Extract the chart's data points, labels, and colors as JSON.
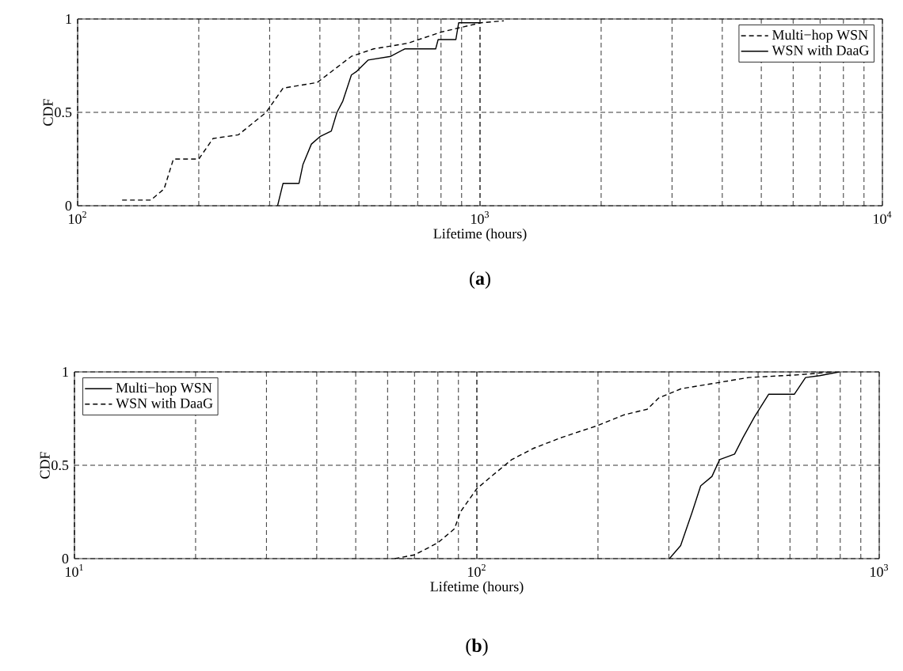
{
  "chart_data": [
    {
      "type": "line",
      "xlabel": "Lifetime (hours)",
      "ylabel": "CDF",
      "log": "x",
      "grid": true,
      "legend": "top right",
      "xlim": [
        100,
        10000
      ],
      "ylim": [
        0,
        1
      ],
      "xticks": [
        {
          "value": 100,
          "label": "10$^{2}$"
        },
        {
          "value": 1000,
          "label": "10$^{3}$"
        },
        {
          "value": 10000,
          "label": "10$^{4}$"
        }
      ],
      "yticks": [
        0,
        0.5,
        1
      ],
      "annotations": [
        "(**a**)"
      ],
      "series": [
        {
          "name": "Multi−hop WSN",
          "color": "#000000",
          "line_style": "dashed",
          "x": [
            129,
            152,
            164,
            173,
            200,
            217,
            251,
            294,
            324,
            394,
            479,
            544,
            661,
            801,
            1007,
            1146
          ],
          "values": [
            0.03,
            0.03,
            0.09,
            0.25,
            0.25,
            0.36,
            0.38,
            0.5,
            0.63,
            0.66,
            0.8,
            0.84,
            0.87,
            0.93,
            0.98,
            0.99
          ]
        },
        {
          "name": "WSN with DaaG",
          "color": "#000000",
          "line_style": "solid",
          "x": [
            314,
            324,
            355,
            363,
            381,
            400,
            427,
            441,
            456,
            479,
            494,
            527,
            600,
            650,
            776,
            787,
            871,
            885,
            1000
          ],
          "values": [
            0,
            0.12,
            0.12,
            0.22,
            0.33,
            0.37,
            0.4,
            0.5,
            0.56,
            0.7,
            0.72,
            0.78,
            0.8,
            0.84,
            0.84,
            0.89,
            0.89,
            0.98,
            0.98
          ]
        }
      ]
    },
    {
      "type": "line",
      "xlabel": "Lifetime (hours)",
      "ylabel": "CDF",
      "log": "x",
      "grid": true,
      "legend": "top left",
      "xlim": [
        10,
        1000
      ],
      "ylim": [
        0,
        1
      ],
      "xticks": [
        {
          "value": 10,
          "label": "10$^{1}$"
        },
        {
          "value": 100,
          "label": "10$^{2}$"
        },
        {
          "value": 1000,
          "label": "10$^{3}$"
        }
      ],
      "yticks": [
        0,
        0.5,
        1
      ],
      "annotations": [
        "(**b**)"
      ],
      "series": [
        {
          "name": "Multi−hop WSN",
          "color": "#000000",
          "line_style": "solid",
          "x": [
            301,
            321,
            343,
            360,
            384,
            401,
            437,
            459,
            490,
            531,
            615,
            656,
            711,
            796
          ],
          "values": [
            0,
            0.07,
            0.25,
            0.39,
            0.44,
            0.53,
            0.56,
            0.65,
            0.76,
            0.88,
            0.88,
            0.97,
            0.98,
            1
          ]
        },
        {
          "name": "WSN with DaaG",
          "color": "#000000",
          "line_style": "dashed",
          "x": [
            62.5,
            70,
            80,
            88,
            91,
            100,
            110,
            122,
            138,
            163,
            198,
            232,
            265,
            283,
            322,
            391,
            474,
            635,
            771
          ],
          "values": [
            0,
            0.02,
            0.085,
            0.16,
            0.25,
            0.375,
            0.45,
            0.53,
            0.59,
            0.65,
            0.71,
            0.77,
            0.8,
            0.86,
            0.91,
            0.94,
            0.97,
            0.985,
            1
          ]
        }
      ]
    }
  ]
}
